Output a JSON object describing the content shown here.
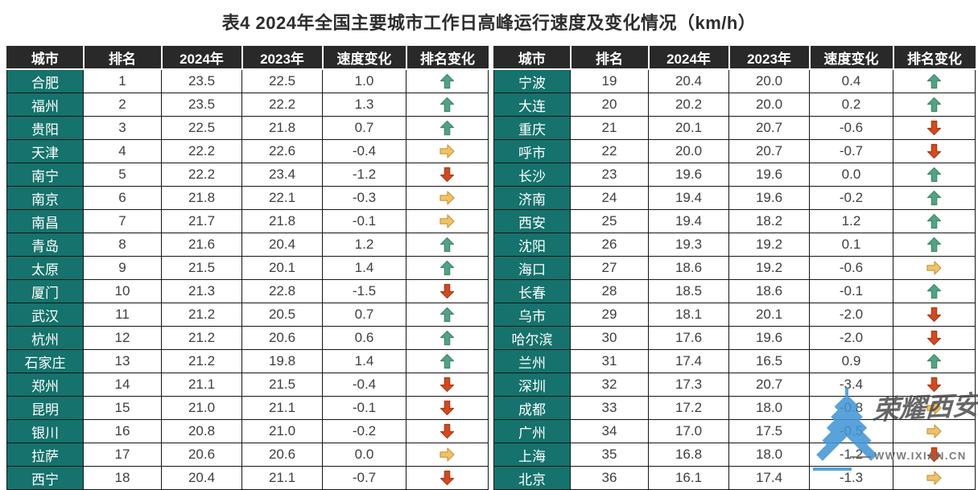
{
  "title": "表4 2024年全国主要城市工作日高峰运行速度及变化情况（km/h）",
  "chart_data": {
    "type": "table",
    "title": "表4 2024年全国主要城市工作日高峰运行速度及变化情况（km/h）",
    "unit": "km/h",
    "columns": [
      "城市",
      "排名",
      "2024年",
      "2023年",
      "速度变化",
      "排名变化"
    ],
    "rank_change_icons": {
      "up": "green-up-arrow",
      "down": "red-down-arrow",
      "flat": "yellow-right-arrow"
    },
    "left_rows": [
      {
        "city": "合肥",
        "rank": "1",
        "y2024": "23.5",
        "y2023": "22.5",
        "speed_change": "1.0",
        "rank_change": "up"
      },
      {
        "city": "福州",
        "rank": "2",
        "y2024": "23.5",
        "y2023": "22.2",
        "speed_change": "1.3",
        "rank_change": "up"
      },
      {
        "city": "贵阳",
        "rank": "3",
        "y2024": "22.5",
        "y2023": "21.8",
        "speed_change": "0.7",
        "rank_change": "up"
      },
      {
        "city": "天津",
        "rank": "4",
        "y2024": "22.2",
        "y2023": "22.6",
        "speed_change": "-0.4",
        "rank_change": "flat"
      },
      {
        "city": "南宁",
        "rank": "5",
        "y2024": "22.2",
        "y2023": "23.4",
        "speed_change": "-1.2",
        "rank_change": "down"
      },
      {
        "city": "南京",
        "rank": "6",
        "y2024": "21.8",
        "y2023": "22.1",
        "speed_change": "-0.3",
        "rank_change": "flat"
      },
      {
        "city": "南昌",
        "rank": "7",
        "y2024": "21.7",
        "y2023": "21.8",
        "speed_change": "-0.1",
        "rank_change": "flat"
      },
      {
        "city": "青岛",
        "rank": "8",
        "y2024": "21.6",
        "y2023": "20.4",
        "speed_change": "1.2",
        "rank_change": "up"
      },
      {
        "city": "太原",
        "rank": "9",
        "y2024": "21.5",
        "y2023": "20.1",
        "speed_change": "1.4",
        "rank_change": "up"
      },
      {
        "city": "厦门",
        "rank": "10",
        "y2024": "21.3",
        "y2023": "22.8",
        "speed_change": "-1.5",
        "rank_change": "down"
      },
      {
        "city": "武汉",
        "rank": "11",
        "y2024": "21.2",
        "y2023": "20.5",
        "speed_change": "0.7",
        "rank_change": "up"
      },
      {
        "city": "杭州",
        "rank": "12",
        "y2024": "21.2",
        "y2023": "20.6",
        "speed_change": "0.6",
        "rank_change": "up"
      },
      {
        "city": "石家庄",
        "rank": "13",
        "y2024": "21.2",
        "y2023": "19.8",
        "speed_change": "1.4",
        "rank_change": "up"
      },
      {
        "city": "郑州",
        "rank": "14",
        "y2024": "21.1",
        "y2023": "21.5",
        "speed_change": "-0.4",
        "rank_change": "down"
      },
      {
        "city": "昆明",
        "rank": "15",
        "y2024": "21.0",
        "y2023": "21.1",
        "speed_change": "-0.1",
        "rank_change": "down"
      },
      {
        "city": "银川",
        "rank": "16",
        "y2024": "20.8",
        "y2023": "21.0",
        "speed_change": "-0.2",
        "rank_change": "down"
      },
      {
        "city": "拉萨",
        "rank": "17",
        "y2024": "20.6",
        "y2023": "20.6",
        "speed_change": "0.0",
        "rank_change": "flat"
      },
      {
        "city": "西宁",
        "rank": "18",
        "y2024": "20.4",
        "y2023": "21.1",
        "speed_change": "-0.7",
        "rank_change": "down"
      }
    ],
    "right_rows": [
      {
        "city": "宁波",
        "rank": "19",
        "y2024": "20.4",
        "y2023": "20.0",
        "speed_change": "0.4",
        "rank_change": "up"
      },
      {
        "city": "大连",
        "rank": "20",
        "y2024": "20.2",
        "y2023": "20.0",
        "speed_change": "0.2",
        "rank_change": "up"
      },
      {
        "city": "重庆",
        "rank": "21",
        "y2024": "20.1",
        "y2023": "20.7",
        "speed_change": "-0.6",
        "rank_change": "down"
      },
      {
        "city": "呼市",
        "rank": "22",
        "y2024": "20.0",
        "y2023": "20.7",
        "speed_change": "-0.7",
        "rank_change": "down"
      },
      {
        "city": "长沙",
        "rank": "23",
        "y2024": "19.6",
        "y2023": "19.6",
        "speed_change": "0.0",
        "rank_change": "up"
      },
      {
        "city": "济南",
        "rank": "24",
        "y2024": "19.4",
        "y2023": "19.6",
        "speed_change": "-0.2",
        "rank_change": "up"
      },
      {
        "city": "西安",
        "rank": "25",
        "y2024": "19.4",
        "y2023": "18.2",
        "speed_change": "1.2",
        "rank_change": "up"
      },
      {
        "city": "沈阳",
        "rank": "26",
        "y2024": "19.3",
        "y2023": "19.2",
        "speed_change": "0.1",
        "rank_change": "up"
      },
      {
        "city": "海口",
        "rank": "27",
        "y2024": "18.6",
        "y2023": "19.2",
        "speed_change": "-0.6",
        "rank_change": "flat"
      },
      {
        "city": "长春",
        "rank": "28",
        "y2024": "18.5",
        "y2023": "18.6",
        "speed_change": "-0.1",
        "rank_change": "up"
      },
      {
        "city": "乌市",
        "rank": "29",
        "y2024": "18.1",
        "y2023": "20.1",
        "speed_change": "-2.0",
        "rank_change": "down"
      },
      {
        "city": "哈尔滨",
        "rank": "30",
        "y2024": "17.6",
        "y2023": "19.6",
        "speed_change": "-2.0",
        "rank_change": "down"
      },
      {
        "city": "兰州",
        "rank": "31",
        "y2024": "17.4",
        "y2023": "16.5",
        "speed_change": "0.9",
        "rank_change": "up"
      },
      {
        "city": "深圳",
        "rank": "32",
        "y2024": "17.3",
        "y2023": "20.7",
        "speed_change": "-3.4",
        "rank_change": "down"
      },
      {
        "city": "成都",
        "rank": "33",
        "y2024": "17.2",
        "y2023": "18.0",
        "speed_change": "-0.8",
        "rank_change": "flat"
      },
      {
        "city": "广州",
        "rank": "34",
        "y2024": "17.0",
        "y2023": "17.5",
        "speed_change": "-0.5",
        "rank_change": "flat"
      },
      {
        "city": "上海",
        "rank": "35",
        "y2024": "16.8",
        "y2023": "18.0",
        "speed_change": "-1.2",
        "rank_change": "down"
      },
      {
        "city": "北京",
        "rank": "36",
        "y2024": "16.1",
        "y2023": "17.4",
        "speed_change": "-1.3",
        "rank_change": "flat"
      }
    ]
  },
  "watermark": {
    "brand": "荣耀西安",
    "url": "WWW.IXIAN.CN"
  },
  "colors": {
    "header_bg": "#292929",
    "city_cell_bg": "#15726C",
    "arrow_up": "#53A284",
    "arrow_down": "#D14A20",
    "arrow_flat": "#EFC26A",
    "watermark_blue": "#4496D6"
  }
}
